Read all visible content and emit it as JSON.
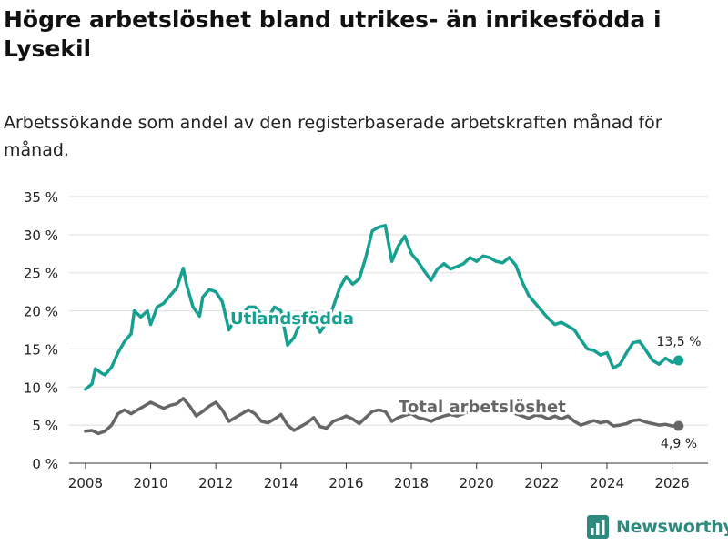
{
  "title": "Högre arbetslöshet bland utrikes- än inrikesfödda i Lysekil",
  "subtitle": "Arbetssökande som andel av den registerbaserade arbetskraften månad för månad.",
  "brand": {
    "name": "Newsworthy",
    "icon": "bar-chart-logo-icon"
  },
  "colors": {
    "utlandsfodda": "#16a091",
    "total": "#666666",
    "grid": "#dddddd",
    "brand": "#2e8a7e"
  },
  "chart_data": {
    "type": "line",
    "title": "Högre arbetslöshet bland utrikes- än inrikesfödda i Lysekil",
    "xlabel": "",
    "ylabel": "",
    "xlim": [
      2007.5,
      2027.1
    ],
    "ylim": [
      0,
      35
    ],
    "x_ticks": [
      2008,
      2010,
      2012,
      2014,
      2016,
      2018,
      2020,
      2022,
      2024,
      2026
    ],
    "x_tick_labels": [
      "2008",
      "2010",
      "2012",
      "2014",
      "2016",
      "2018",
      "2020",
      "2022",
      "2024",
      "2026"
    ],
    "y_ticks": [
      0,
      5,
      10,
      15,
      20,
      25,
      30,
      35
    ],
    "y_tick_labels": [
      "0 %",
      "5 %",
      "10 %",
      "15 %",
      "20 %",
      "25 %",
      "30 %",
      "35 %"
    ],
    "grid": true,
    "series": [
      {
        "name": "Utlandsfödda",
        "label": "Utlandsfödda",
        "end_label": "13,5 %",
        "x": [
          2008.0,
          2008.2,
          2008.3,
          2008.5,
          2008.6,
          2008.8,
          2009.0,
          2009.2,
          2009.4,
          2009.5,
          2009.7,
          2009.9,
          2010.0,
          2010.2,
          2010.4,
          2010.6,
          2010.8,
          2011.0,
          2011.1,
          2011.3,
          2011.5,
          2011.6,
          2011.8,
          2012.0,
          2012.2,
          2012.4,
          2012.6,
          2012.8,
          2013.0,
          2013.2,
          2013.4,
          2013.6,
          2013.8,
          2014.0,
          2014.2,
          2014.4,
          2014.6,
          2014.8,
          2015.0,
          2015.2,
          2015.4,
          2015.6,
          2015.8,
          2016.0,
          2016.2,
          2016.4,
          2016.6,
          2016.8,
          2017.0,
          2017.2,
          2017.4,
          2017.6,
          2017.8,
          2018.0,
          2018.2,
          2018.4,
          2018.6,
          2018.8,
          2019.0,
          2019.2,
          2019.4,
          2019.6,
          2019.8,
          2020.0,
          2020.2,
          2020.4,
          2020.6,
          2020.8,
          2021.0,
          2021.2,
          2021.4,
          2021.6,
          2021.8,
          2022.0,
          2022.2,
          2022.4,
          2022.6,
          2022.8,
          2023.0,
          2023.2,
          2023.4,
          2023.6,
          2023.8,
          2024.0,
          2024.2,
          2024.4,
          2024.6,
          2024.8,
          2025.0,
          2025.2,
          2025.4,
          2025.6,
          2025.8,
          2026.0,
          2026.2
        ],
        "values": [
          9.7,
          10.4,
          12.4,
          11.8,
          11.6,
          12.6,
          14.5,
          16.0,
          17.0,
          20.0,
          19.2,
          20.0,
          18.2,
          20.5,
          21.0,
          22.0,
          23.0,
          25.6,
          23.5,
          20.5,
          19.3,
          21.8,
          22.8,
          22.5,
          21.2,
          17.5,
          19.0,
          19.5,
          20.5,
          20.5,
          19.5,
          19.0,
          20.5,
          20.0,
          15.5,
          16.5,
          18.5,
          18.5,
          18.8,
          17.2,
          18.5,
          20.5,
          23.0,
          24.5,
          23.5,
          24.2,
          27.0,
          30.5,
          31.0,
          31.2,
          26.5,
          28.5,
          29.8,
          27.5,
          26.5,
          25.2,
          24.0,
          25.5,
          26.2,
          25.5,
          25.8,
          26.2,
          27.0,
          26.5,
          27.2,
          27.0,
          26.5,
          26.3,
          27.0,
          26.0,
          23.8,
          22.0,
          21.0,
          20.0,
          19.0,
          18.2,
          18.5,
          18.0,
          17.5,
          16.2,
          15.0,
          14.8,
          14.2,
          14.5,
          12.5,
          13.0,
          14.5,
          15.8,
          16.0,
          14.8,
          13.5,
          13.0,
          13.8,
          13.2,
          13.5
        ]
      },
      {
        "name": "Total arbetslöshet",
        "label": "Total arbetslöshet",
        "end_label": "4,9 %",
        "x": [
          2008.0,
          2008.2,
          2008.4,
          2008.6,
          2008.8,
          2009.0,
          2009.2,
          2009.4,
          2009.6,
          2009.8,
          2010.0,
          2010.2,
          2010.4,
          2010.6,
          2010.8,
          2011.0,
          2011.2,
          2011.4,
          2011.6,
          2011.8,
          2012.0,
          2012.2,
          2012.4,
          2012.6,
          2012.8,
          2013.0,
          2013.2,
          2013.4,
          2013.6,
          2013.8,
          2014.0,
          2014.2,
          2014.4,
          2014.6,
          2014.8,
          2015.0,
          2015.2,
          2015.4,
          2015.6,
          2015.8,
          2016.0,
          2016.2,
          2016.4,
          2016.6,
          2016.8,
          2017.0,
          2017.2,
          2017.4,
          2017.6,
          2017.8,
          2018.0,
          2018.2,
          2018.4,
          2018.6,
          2018.8,
          2019.0,
          2019.2,
          2019.4,
          2019.6,
          2019.8,
          2020.0,
          2020.2,
          2020.4,
          2020.6,
          2020.8,
          2021.0,
          2021.2,
          2021.4,
          2021.6,
          2021.8,
          2022.0,
          2022.2,
          2022.4,
          2022.6,
          2022.8,
          2023.0,
          2023.2,
          2023.4,
          2023.6,
          2023.8,
          2024.0,
          2024.2,
          2024.4,
          2024.6,
          2024.8,
          2025.0,
          2025.2,
          2025.4,
          2025.6,
          2025.8,
          2026.0,
          2026.2
        ],
        "values": [
          4.2,
          4.3,
          3.9,
          4.2,
          5.0,
          6.5,
          7.0,
          6.5,
          7.0,
          7.5,
          8.0,
          7.6,
          7.2,
          7.6,
          7.8,
          8.5,
          7.5,
          6.2,
          6.8,
          7.5,
          8.0,
          7.0,
          5.5,
          6.0,
          6.5,
          7.0,
          6.5,
          5.5,
          5.3,
          5.8,
          6.4,
          5.0,
          4.3,
          4.8,
          5.3,
          6.0,
          4.8,
          4.6,
          5.5,
          5.8,
          6.2,
          5.8,
          5.2,
          6.0,
          6.8,
          7.0,
          6.8,
          5.5,
          6.0,
          6.3,
          6.5,
          6.0,
          5.8,
          5.5,
          5.9,
          6.2,
          6.4,
          6.2,
          6.5,
          6.8,
          7.0,
          7.5,
          7.8,
          7.2,
          7.0,
          6.8,
          6.5,
          6.2,
          5.9,
          6.3,
          6.2,
          5.8,
          6.2,
          5.8,
          6.2,
          5.5,
          5.0,
          5.3,
          5.6,
          5.3,
          5.5,
          4.9,
          5.0,
          5.2,
          5.6,
          5.7,
          5.4,
          5.2,
          5.0,
          5.1,
          4.9,
          4.9
        ]
      }
    ]
  }
}
